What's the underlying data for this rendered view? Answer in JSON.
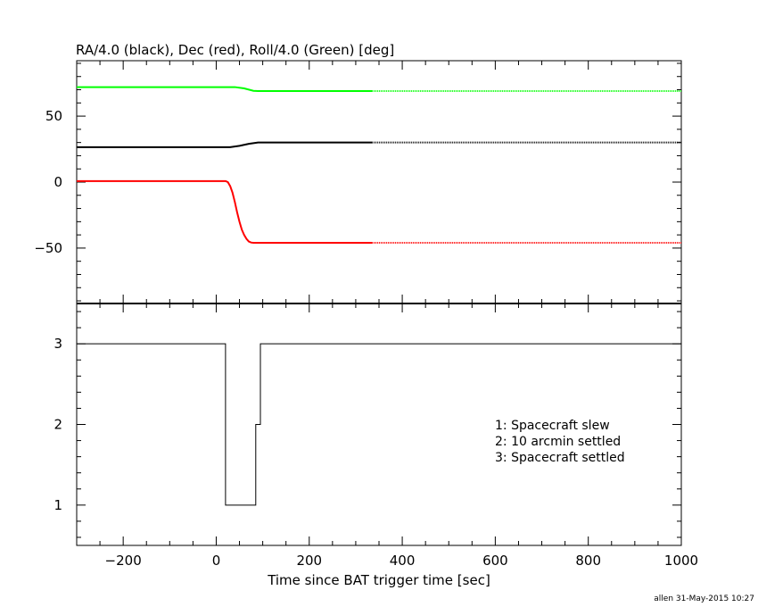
{
  "title": "RA/4.0 (black), Dec (red), Roll/4.0 (Green) [deg]",
  "footer": "allen 31-May-2015 10:27",
  "chart_data": [
    {
      "type": "line",
      "title": "RA/4.0 (black), Dec (red), Roll/4.0 (Green) [deg]",
      "xlabel": "",
      "ylabel": "",
      "xlim": [
        -300,
        1000
      ],
      "ylim": [
        -92,
        92
      ],
      "grid": false,
      "yticks": [
        -50,
        0,
        50
      ],
      "ytick_labels": [
        "−50",
        "0",
        "50"
      ],
      "series": [
        {
          "name": "Roll/4.0",
          "color": "#00ff00",
          "x": [
            -300,
            40,
            60,
            80,
            90,
            335
          ],
          "y": [
            72,
            72,
            71,
            69.2,
            69,
            69
          ],
          "dotted_x": [
            335,
            1000
          ],
          "dotted_y": [
            69,
            69
          ]
        },
        {
          "name": "RA/4.0",
          "color": "#000000",
          "x": [
            -300,
            30,
            50,
            70,
            90,
            100,
            335
          ],
          "y": [
            26.5,
            26.5,
            27.5,
            29,
            30,
            30,
            30
          ],
          "dotted_x": [
            335,
            1000
          ],
          "dotted_y": [
            30,
            30
          ]
        },
        {
          "name": "Dec",
          "color": "#ff0000",
          "x": [
            -300,
            20,
            25,
            30,
            35,
            40,
            45,
            50,
            55,
            60,
            65,
            70,
            75,
            80,
            85,
            90,
            335
          ],
          "y": [
            0.8,
            0.8,
            0,
            -3,
            -8,
            -15,
            -23,
            -30,
            -36,
            -40,
            -43,
            -45,
            -45.8,
            -46,
            -46,
            -46,
            -46
          ],
          "dotted_x": [
            335,
            1000
          ],
          "dotted_y": [
            -46,
            -46
          ]
        }
      ]
    },
    {
      "type": "line",
      "title": "",
      "xlabel": "Time since BAT trigger time [sec]",
      "ylabel": "",
      "xlim": [
        -300,
        1000
      ],
      "ylim": [
        0.5,
        3.5
      ],
      "grid": false,
      "xticks": [
        -200,
        0,
        200,
        400,
        600,
        800,
        1000
      ],
      "xtick_labels": [
        "−200",
        "0",
        "200",
        "400",
        "600",
        "800",
        "1000"
      ],
      "yticks": [
        1,
        2,
        3
      ],
      "ytick_labels": [
        "1",
        "2",
        "3"
      ],
      "series": [
        {
          "color": "#000000",
          "step": true,
          "x": [
            -300,
            20,
            20,
            85,
            85,
            95,
            95,
            1000
          ],
          "y": [
            3,
            3,
            1,
            1,
            2,
            2,
            3,
            3
          ]
        }
      ],
      "legend": {
        "placement": "right",
        "entries": [
          "1: Spacecraft slew",
          "2: 10 arcmin settled",
          "3: Spacecraft settled"
        ]
      }
    }
  ]
}
